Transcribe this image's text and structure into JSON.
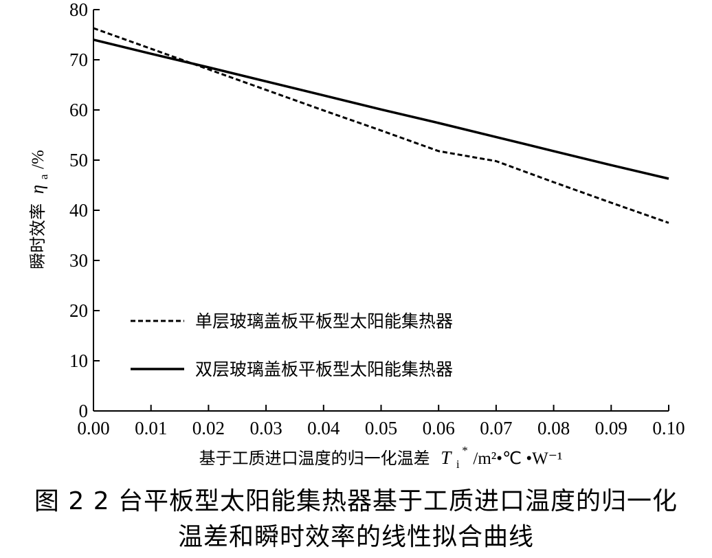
{
  "chart_data": {
    "type": "line",
    "x": [
      0.0,
      0.01,
      0.02,
      0.03,
      0.04,
      0.05,
      0.06,
      0.07,
      0.08,
      0.09,
      0.1
    ],
    "xticks": [
      "0.00",
      "0.01",
      "0.02",
      "0.03",
      "0.04",
      "0.05",
      "0.06",
      "0.07",
      "0.08",
      "0.09",
      "0.10"
    ],
    "yticks": [
      "0",
      "10",
      "20",
      "30",
      "40",
      "50",
      "60",
      "70",
      "80"
    ],
    "xlim": [
      0,
      0.1
    ],
    "ylim": [
      0,
      80
    ],
    "xlabel": "基于工质进口温度的归一化温差",
    "xlabel_symbol": "T",
    "xlabel_sub": "i",
    "xlabel_sup": "*",
    "xlabel_unit": "/m²•℃ •W⁻¹",
    "ylabel": "瞬时效率",
    "ylabel_symbol": "η",
    "ylabel_sub": "a",
    "ylabel_unit": "/%",
    "series": [
      {
        "name": "单层玻璃盖板平板型太阳能集热器",
        "style": "dashed",
        "color": "#000000",
        "values": [
          76.3,
          72.2,
          68.1,
          64.0,
          59.9,
          55.9,
          51.8,
          49.8,
          45.6,
          41.5,
          37.5
        ]
      },
      {
        "name": "双层玻璃盖板平板型太阳能集热器",
        "style": "solid",
        "color": "#000000",
        "values": [
          74.0,
          71.2,
          68.5,
          65.7,
          62.9,
          60.1,
          57.4,
          54.6,
          51.8,
          49.0,
          46.3
        ]
      }
    ],
    "legend_position": "lower-left",
    "grid": false
  },
  "caption": {
    "line1": "图 2  2 台平板型太阳能集热器基于工质进口温度的归一化",
    "line2": "温差和瞬时效率的线性拟合曲线"
  }
}
